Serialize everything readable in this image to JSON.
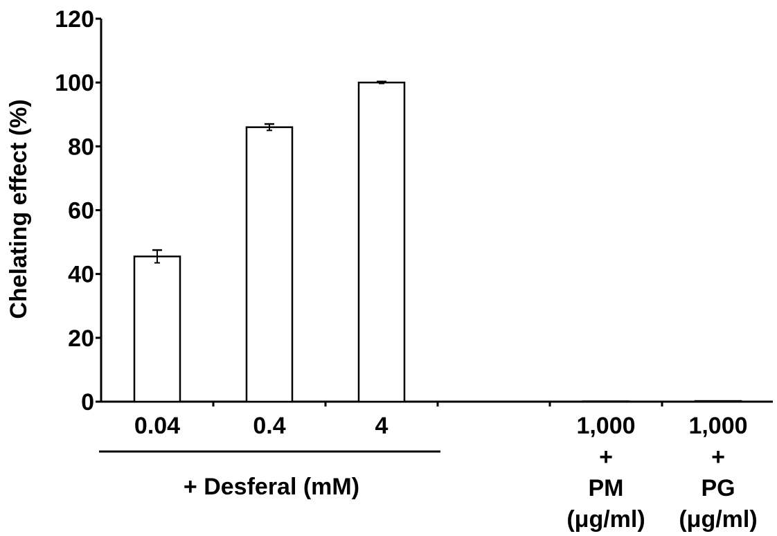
{
  "chart_data": {
    "type": "bar",
    "ylabel": "Chelating effect (%)",
    "ylim": [
      0,
      120
    ],
    "y_ticks": [
      "0",
      "20",
      "40",
      "60",
      "80",
      "100",
      "120"
    ],
    "categories": [
      {
        "label_lines": [
          "0.04"
        ]
      },
      {
        "label_lines": [
          "0.4"
        ]
      },
      {
        "label_lines": [
          "4"
        ]
      },
      {
        "label_lines": [
          "1,000",
          "+",
          "PM",
          "(μg/ml)"
        ]
      },
      {
        "label_lines": [
          "1,000",
          "+",
          "PG",
          "(μg/ml)"
        ]
      }
    ],
    "values": [
      45.5,
      86,
      100,
      0,
      0.2
    ],
    "errors": [
      2,
      1,
      0.3,
      0,
      0
    ],
    "group_label": "+ Desferal (mM)",
    "bar_color": "#ffffff",
    "edge_color": "#000000"
  }
}
